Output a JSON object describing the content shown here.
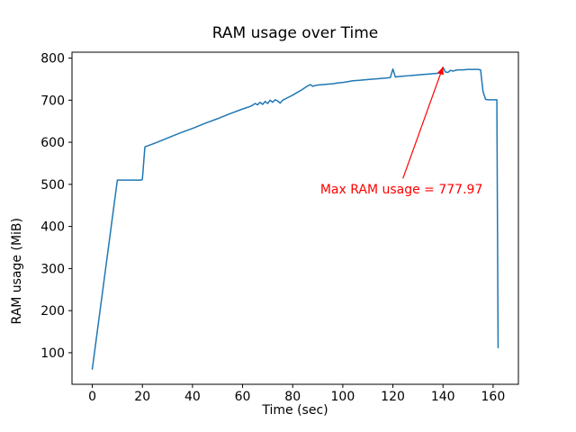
{
  "figure": {
    "background": "#ffffff"
  },
  "chart_data": {
    "type": "line",
    "title": "RAM usage over Time",
    "xlabel": "Time (sec)",
    "ylabel": "RAM usage (MiB)",
    "xlim": [
      -8.1,
      170.1
    ],
    "ylim": [
      25,
      814
    ],
    "x_ticks": [
      0,
      20,
      40,
      60,
      80,
      100,
      120,
      140,
      160
    ],
    "y_ticks": [
      100,
      200,
      300,
      400,
      500,
      600,
      700,
      800
    ],
    "grid": false,
    "legend": null,
    "line_color": "#1f77b4",
    "axis_color": "#000000",
    "series": [
      {
        "name": "RAM usage",
        "x": [
          0,
          10,
          19.5,
          20,
          21,
          25,
          30,
          35,
          40,
          45,
          50,
          55,
          60,
          63,
          64,
          65,
          66,
          67,
          68,
          69,
          70,
          71,
          72,
          73,
          74,
          75,
          76,
          77,
          78,
          80,
          82,
          84,
          85,
          86,
          87,
          88,
          89,
          90,
          92,
          94,
          96,
          98,
          100,
          102,
          104,
          106,
          108,
          110,
          112,
          114,
          116,
          118,
          119,
          120,
          121,
          122,
          124,
          126,
          128,
          130,
          132,
          134,
          136,
          138,
          139,
          140,
          141,
          142,
          143,
          144,
          145,
          146,
          148,
          150,
          152,
          154,
          155,
          156,
          157,
          158,
          159,
          160,
          161,
          161.5,
          162
        ],
        "y": [
          61,
          510,
          510,
          512,
          589,
          598,
          610,
          622,
          633,
          645,
          656,
          668,
          679,
          685,
          688,
          692,
          689,
          695,
          690,
          697,
          692,
          700,
          695,
          701,
          698,
          693,
          700,
          703,
          706,
          712,
          719,
          726,
          730,
          734,
          737,
          733,
          735,
          736,
          737,
          738,
          739,
          741,
          742,
          744,
          746,
          747,
          748,
          749,
          750,
          751,
          752,
          753,
          754,
          774,
          755,
          756,
          757,
          758,
          759,
          760,
          761,
          762,
          763,
          764,
          765,
          777.97,
          767,
          766,
          771,
          769,
          771,
          772,
          772,
          773,
          773,
          773,
          772,
          720,
          702,
          701,
          701,
          701,
          701,
          701,
          112
        ]
      }
    ],
    "max_value": 777.97,
    "annotation": {
      "text": "Max RAM usage = 777.97",
      "color": "#ff0000",
      "text_xy": [
        91,
        478
      ],
      "arrow_from": [
        124,
        514
      ],
      "arrow_to": [
        140,
        779
      ]
    }
  }
}
